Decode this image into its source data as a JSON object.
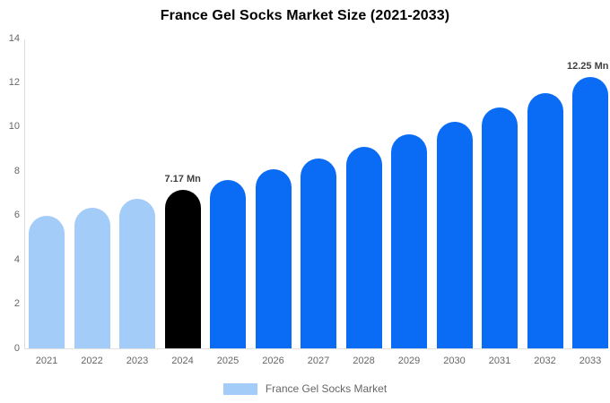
{
  "chart_data": {
    "type": "bar",
    "title": "France Gel Socks Market Size (2021-2033)",
    "categories": [
      "2021",
      "2022",
      "2023",
      "2024",
      "2025",
      "2026",
      "2027",
      "2028",
      "2029",
      "2030",
      "2031",
      "2032",
      "2033"
    ],
    "series": [
      {
        "name": "France Gel Socks Market",
        "values": [
          6.0,
          6.37,
          6.76,
          7.17,
          7.61,
          8.08,
          8.57,
          9.1,
          9.66,
          10.25,
          10.88,
          11.54,
          12.25
        ]
      }
    ],
    "unit": "Mn",
    "ylim": [
      0,
      14
    ],
    "yticks": [
      0,
      2,
      4,
      6,
      8,
      10,
      12,
      14
    ],
    "grid": false,
    "legend_position": "bottom",
    "bar_colors": [
      "#a4ccf8",
      "#a4ccf8",
      "#a4ccf8",
      "#000000",
      "#0a6cf5",
      "#0a6cf5",
      "#0a6cf5",
      "#0a6cf5",
      "#0a6cf5",
      "#0a6cf5",
      "#0a6cf5",
      "#0a6cf5",
      "#0a6cf5"
    ],
    "annotations": [
      {
        "category": "2024",
        "text": "7.17 Mn"
      },
      {
        "category": "2033",
        "text": "12.25 Mn"
      }
    ],
    "legend": {
      "label": "France Gel Socks Market",
      "swatch_color": "#a4ccf8"
    }
  }
}
